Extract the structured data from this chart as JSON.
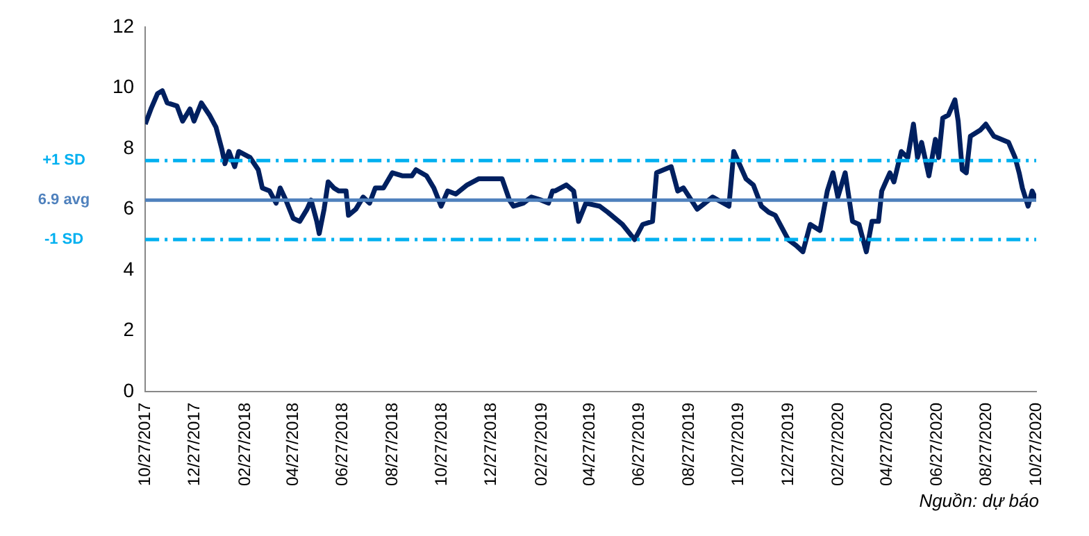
{
  "chart_data": {
    "type": "line",
    "annotations": [
      "Nguồn: dự báo"
    ],
    "x": [
      "2017-10-27",
      "2017-11-03",
      "2017-11-11",
      "2017-11-17",
      "2017-11-23",
      "2017-12-05",
      "2017-12-12",
      "2017-12-21",
      "2017-12-26",
      "2018-01-04",
      "2018-01-14",
      "2018-01-22",
      "2018-01-29",
      "2018-02-02",
      "2018-02-07",
      "2018-02-14",
      "2018-02-19",
      "2018-03-05",
      "2018-03-15",
      "2018-03-20",
      "2018-03-29",
      "2018-04-06",
      "2018-04-11",
      "2018-04-18",
      "2018-04-27",
      "2018-05-05",
      "2018-05-14",
      "2018-05-19",
      "2018-05-26",
      "2018-05-29",
      "2018-06-04",
      "2018-06-09",
      "2018-06-16",
      "2018-06-22",
      "2018-07-01",
      "2018-07-04",
      "2018-07-13",
      "2018-07-22",
      "2018-07-30",
      "2018-08-06",
      "2018-08-16",
      "2018-08-27",
      "2018-09-08",
      "2018-09-20",
      "2018-09-25",
      "2018-10-08",
      "2018-10-17",
      "2018-10-26",
      "2018-11-03",
      "2018-11-13",
      "2018-11-27",
      "2018-12-11",
      "2018-12-28",
      "2019-01-09",
      "2019-01-18",
      "2019-01-23",
      "2019-02-04",
      "2019-02-14",
      "2019-02-26",
      "2019-03-07",
      "2019-03-12",
      "2019-03-15",
      "2019-03-29",
      "2019-04-07",
      "2019-04-13",
      "2019-04-22",
      "2019-05-09",
      "2019-05-19",
      "2019-06-06",
      "2019-06-21",
      "2019-07-01",
      "2019-07-13",
      "2019-07-18",
      "2019-08-05",
      "2019-08-13",
      "2019-08-20",
      "2019-09-06",
      "2019-09-25",
      "2019-10-15",
      "2019-10-21",
      "2019-11-05",
      "2019-11-14",
      "2019-11-24",
      "2019-12-03",
      "2019-12-11",
      "2019-12-27",
      "2020-01-06",
      "2020-01-14",
      "2020-01-23",
      "2020-02-04",
      "2020-02-13",
      "2020-02-20",
      "2020-02-26",
      "2020-03-06",
      "2020-03-15",
      "2020-03-23",
      "2020-04-01",
      "2020-04-08",
      "2020-04-16",
      "2020-04-20",
      "2020-04-30",
      "2020-05-05",
      "2020-05-14",
      "2020-05-22",
      "2020-05-29",
      "2020-06-03",
      "2020-06-08",
      "2020-06-17",
      "2020-06-25",
      "2020-06-29",
      "2020-07-04",
      "2020-07-11",
      "2020-07-19",
      "2020-07-23",
      "2020-07-28",
      "2020-08-02",
      "2020-08-07",
      "2020-08-19",
      "2020-08-26",
      "2020-09-05",
      "2020-09-23",
      "2020-10-01",
      "2020-10-06",
      "2020-10-10",
      "2020-10-17",
      "2020-10-22",
      "2020-10-27"
    ],
    "series": [
      {
        "color": "#002060",
        "values": [
          8.8,
          9.3,
          9.8,
          9.9,
          9.5,
          9.4,
          8.9,
          9.3,
          8.9,
          9.5,
          9.1,
          8.7,
          8.0,
          7.5,
          7.9,
          7.4,
          7.9,
          7.7,
          7.3,
          6.7,
          6.6,
          6.2,
          6.7,
          6.3,
          5.7,
          5.6,
          6.0,
          6.3,
          5.6,
          5.2,
          6.0,
          6.9,
          6.7,
          6.6,
          6.6,
          5.8,
          6.0,
          6.4,
          6.2,
          6.7,
          6.7,
          7.2,
          7.1,
          7.1,
          7.3,
          7.1,
          6.7,
          6.1,
          6.6,
          6.5,
          6.8,
          7.0,
          7.0,
          7.0,
          6.3,
          6.1,
          6.2,
          6.4,
          6.3,
          6.2,
          6.6,
          6.6,
          6.8,
          6.6,
          5.6,
          6.2,
          6.1,
          5.9,
          5.5,
          5.0,
          5.5,
          5.6,
          7.2,
          7.4,
          6.6,
          6.7,
          6.0,
          6.4,
          6.1,
          7.9,
          7.0,
          6.8,
          6.1,
          5.9,
          5.8,
          5.0,
          4.8,
          4.6,
          5.5,
          5.3,
          6.6,
          7.2,
          6.4,
          7.2,
          5.6,
          5.5,
          4.6,
          5.6,
          5.6,
          6.6,
          7.2,
          6.9,
          7.9,
          7.7,
          8.8,
          7.7,
          8.2,
          7.1,
          8.3,
          7.7,
          9.0,
          9.1,
          9.6,
          8.9,
          7.3,
          7.2,
          8.4,
          8.6,
          8.8,
          8.4,
          8.2,
          7.7,
          7.2,
          6.7,
          6.1,
          6.6,
          6.3
        ]
      }
    ],
    "ylim": [
      0,
      12
    ],
    "yticks": [
      0,
      2,
      4,
      6,
      8,
      10,
      12
    ],
    "xlim": [
      "2017-10-27",
      "2020-10-27"
    ],
    "xticks": [
      {
        "value": "2017-10-27",
        "label": "10/27/2017"
      },
      {
        "value": "2017-12-27",
        "label": "12/27/2017"
      },
      {
        "value": "2018-02-27",
        "label": "02/27/2018"
      },
      {
        "value": "2018-04-27",
        "label": "04/27/2018"
      },
      {
        "value": "2018-06-27",
        "label": "06/27/2018"
      },
      {
        "value": "2018-08-27",
        "label": "08/27/2018"
      },
      {
        "value": "2018-10-27",
        "label": "10/27/2018"
      },
      {
        "value": "2018-12-27",
        "label": "12/27/2018"
      },
      {
        "value": "2019-02-27",
        "label": "02/27/2019"
      },
      {
        "value": "2019-04-27",
        "label": "04/27/2019"
      },
      {
        "value": "2019-06-27",
        "label": "06/27/2019"
      },
      {
        "value": "2019-08-27",
        "label": "08/27/2019"
      },
      {
        "value": "2019-10-27",
        "label": "10/27/2019"
      },
      {
        "value": "2019-12-27",
        "label": "12/27/2019"
      },
      {
        "value": "2020-02-27",
        "label": "02/27/2020"
      },
      {
        "value": "2020-04-27",
        "label": "04/27/2020"
      },
      {
        "value": "2020-06-27",
        "label": "06/27/2020"
      },
      {
        "value": "2020-08-27",
        "label": "08/27/2020"
      },
      {
        "value": "2020-10-27",
        "label": "10/27/2020"
      }
    ],
    "ref_lines": [
      {
        "axis": "y",
        "value": 7.6,
        "label": "+1 SD",
        "color": "#00b0f0",
        "line_style": "dashed"
      },
      {
        "axis": "y",
        "value": 6.3,
        "label": "6.9 avg",
        "color": "#4f81bd",
        "line_style": "solid"
      },
      {
        "axis": "y",
        "value": 5.0,
        "label": "-1 SD",
        "color": "#00b0f0",
        "line_style": "dashed"
      }
    ],
    "grid": false,
    "legend": false,
    "marker": "none",
    "line_style": "solid"
  }
}
